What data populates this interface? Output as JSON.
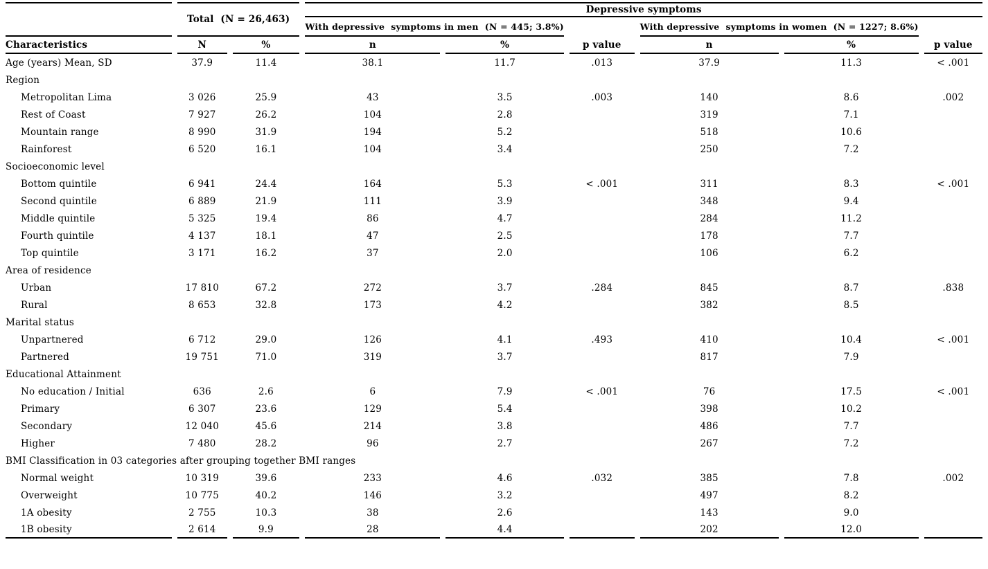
{
  "table": {
    "header": {
      "total_label": "Total  (N = 26,463)",
      "depressive_label": "Depressive symptoms",
      "men_label": "With depressive  symptoms in men  (N = 445; 3.8%)",
      "women_label": "With depressive  symptoms in women  (N = 1227; 8.6%)",
      "characteristics_label": "Characteristics",
      "col_labels": [
        "N",
        "%",
        "n",
        "%",
        "p value",
        "n",
        "%",
        "p value"
      ]
    },
    "rows": [
      {
        "type": "data",
        "label": "Age (years) Mean, SD",
        "indent": false,
        "cells": [
          "37.9",
          "11.4",
          "38.1",
          "11.7",
          ".013",
          "37.9",
          "11.3",
          "< .001"
        ]
      },
      {
        "type": "section",
        "label": "Region"
      },
      {
        "type": "data",
        "label": "Metropolitan Lima",
        "indent": true,
        "cells": [
          "3 026",
          "25.9",
          "43",
          "3.5",
          ".003",
          "140",
          "8.6",
          ".002"
        ]
      },
      {
        "type": "data",
        "label": "Rest of Coast",
        "indent": true,
        "cells": [
          "7 927",
          "26.2",
          "104",
          "2.8",
          "",
          "319",
          "7.1",
          ""
        ]
      },
      {
        "type": "data",
        "label": "Mountain range",
        "indent": true,
        "cells": [
          "8 990",
          "31.9",
          "194",
          "5.2",
          "",
          "518",
          "10.6",
          ""
        ]
      },
      {
        "type": "data",
        "label": "Rainforest",
        "indent": true,
        "cells": [
          "6 520",
          "16.1",
          "104",
          "3.4",
          "",
          "250",
          "7.2",
          ""
        ]
      },
      {
        "type": "section",
        "label": "Socioeconomic level"
      },
      {
        "type": "data",
        "label": "Bottom quintile",
        "indent": true,
        "cells": [
          "6 941",
          "24.4",
          "164",
          "5.3",
          "< .001",
          "311",
          "8.3",
          "< .001"
        ]
      },
      {
        "type": "data",
        "label": "Second quintile",
        "indent": true,
        "cells": [
          "6 889",
          "21.9",
          "111",
          "3.9",
          "",
          "348",
          "9.4",
          ""
        ]
      },
      {
        "type": "data",
        "label": "Middle quintile",
        "indent": true,
        "cells": [
          "5 325",
          "19.4",
          "86",
          "4.7",
          "",
          "284",
          "11.2",
          ""
        ]
      },
      {
        "type": "data",
        "label": "Fourth quintile",
        "indent": true,
        "cells": [
          "4 137",
          "18.1",
          "47",
          "2.5",
          "",
          "178",
          "7.7",
          ""
        ]
      },
      {
        "type": "data",
        "label": "Top quintile",
        "indent": true,
        "cells": [
          "3 171",
          "16.2",
          "37",
          "2.0",
          "",
          "106",
          "6.2",
          ""
        ]
      },
      {
        "type": "section",
        "label": "Area of residence"
      },
      {
        "type": "data",
        "label": "Urban",
        "indent": true,
        "cells": [
          "17 810",
          "67.2",
          "272",
          "3.7",
          ".284",
          "845",
          "8.7",
          ".838"
        ]
      },
      {
        "type": "data",
        "label": "Rural",
        "indent": true,
        "cells": [
          "8 653",
          "32.8",
          "173",
          "4.2",
          "",
          "382",
          "8.5",
          ""
        ]
      },
      {
        "type": "section",
        "label": "Marital status"
      },
      {
        "type": "data",
        "label": "Unpartnered",
        "indent": true,
        "cells": [
          "6 712",
          "29.0",
          "126",
          "4.1",
          ".493",
          "410",
          "10.4",
          "< .001"
        ]
      },
      {
        "type": "data",
        "label": "Partnered",
        "indent": true,
        "cells": [
          "19 751",
          "71.0",
          "319",
          "3.7",
          "",
          "817",
          "7.9",
          ""
        ]
      },
      {
        "type": "section",
        "label": "Educational Attainment"
      },
      {
        "type": "data",
        "label": "No education / Initial",
        "indent": true,
        "cells": [
          "636",
          "2.6",
          "6",
          "7.9",
          "< .001",
          "76",
          "17.5",
          "< .001"
        ]
      },
      {
        "type": "data",
        "label": "Primary",
        "indent": true,
        "cells": [
          "6 307",
          "23.6",
          "129",
          "5.4",
          "",
          "398",
          "10.2",
          ""
        ]
      },
      {
        "type": "data",
        "label": "Secondary",
        "indent": true,
        "cells": [
          "12 040",
          "45.6",
          "214",
          "3.8",
          "",
          "486",
          "7.7",
          ""
        ]
      },
      {
        "type": "data",
        "label": "Higher",
        "indent": true,
        "cells": [
          "7 480",
          "28.2",
          "96",
          "2.7",
          "",
          "267",
          "7.2",
          ""
        ]
      },
      {
        "type": "section",
        "label": "BMI Classification in 03 categories after grouping together BMI ranges"
      },
      {
        "type": "data",
        "label": "Normal weight",
        "indent": true,
        "cells": [
          "10 319",
          "39.6",
          "233",
          "4.6",
          ".032",
          "385",
          "7.8",
          ".002"
        ]
      },
      {
        "type": "data",
        "label": "Overweight",
        "indent": true,
        "cells": [
          "10 775",
          "40.2",
          "146",
          "3.2",
          "",
          "497",
          "8.2",
          ""
        ]
      },
      {
        "type": "data",
        "label": "1A obesity",
        "indent": true,
        "cells": [
          "2 755",
          "10.3",
          "38",
          "2.6",
          "",
          "143",
          "9.0",
          ""
        ]
      },
      {
        "type": "data",
        "label": "1B obesity",
        "indent": true,
        "cells": [
          "2 614",
          "9.9",
          "28",
          "4.4",
          "",
          "202",
          "12.0",
          ""
        ]
      }
    ]
  }
}
